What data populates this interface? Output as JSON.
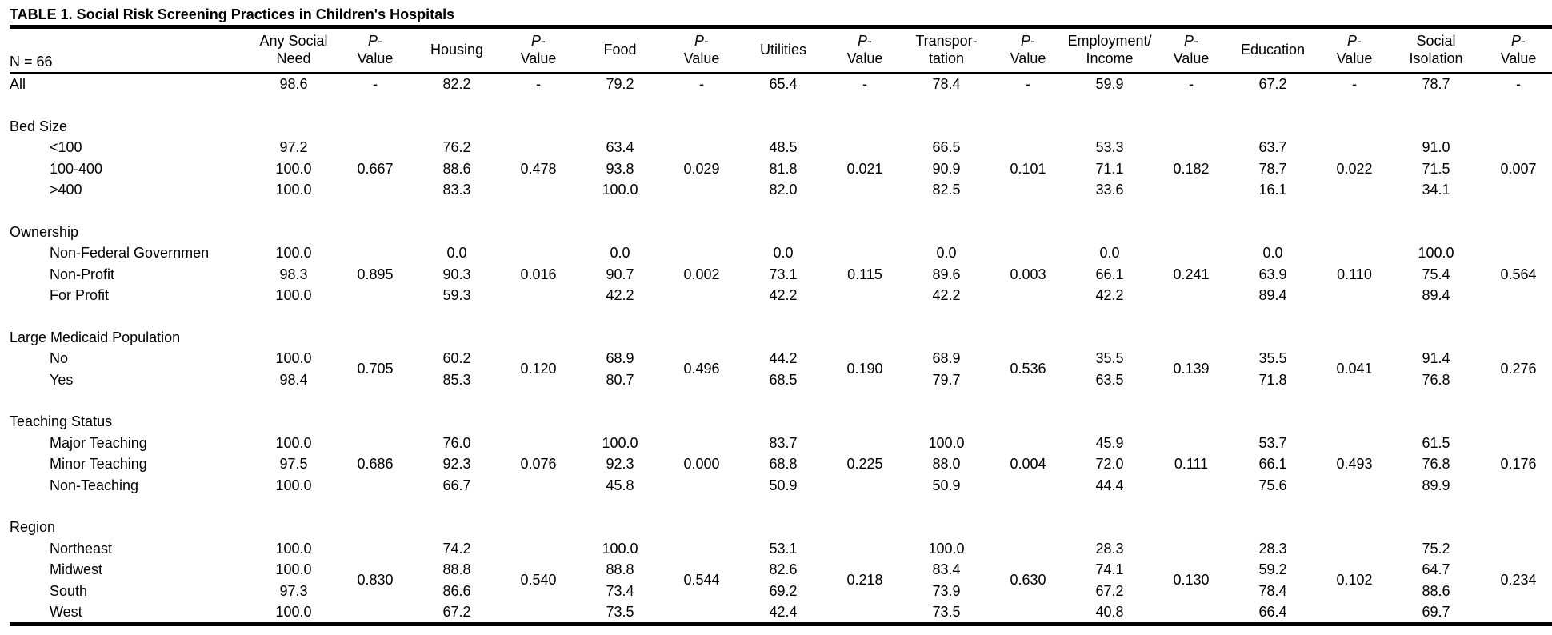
{
  "title": "TABLE 1. Social Risk Screening Practices in Children's Hospitals",
  "header": {
    "n_label": "N = 66",
    "columns": [
      "Any Social\nNeed",
      "P-\nValue",
      "Housing",
      "P-\nValue",
      "Food",
      "P-\nValue",
      "Utilities",
      "P-\nValue",
      "Transpor-\ntation",
      "P-\nValue",
      "Employment/\nIncome",
      "P-\nValue",
      "Education",
      "P-\nValue",
      "Social\nIsolation",
      "P-\nValue"
    ]
  },
  "table": {
    "all": {
      "label": "All",
      "values": [
        "98.6",
        "82.2",
        "79.2",
        "65.4",
        "78.4",
        "59.9",
        "67.2",
        "78.7"
      ],
      "p_values": [
        "-",
        "-",
        "-",
        "-",
        "-",
        "-",
        "-",
        "-"
      ]
    },
    "groups": [
      {
        "label": "Bed Size",
        "rows": [
          {
            "label": "<100",
            "values": [
              "97.2",
              "76.2",
              "63.4",
              "48.5",
              "66.5",
              "53.3",
              "63.7",
              "91.0"
            ]
          },
          {
            "label": "100-400",
            "values": [
              "100.0",
              "88.6",
              "93.8",
              "81.8",
              "90.9",
              "71.1",
              "78.7",
              "71.5"
            ]
          },
          {
            "label": ">400",
            "values": [
              "100.0",
              "83.3",
              "100.0",
              "82.0",
              "82.5",
              "33.6",
              "16.1",
              "34.1"
            ]
          }
        ],
        "p_values": [
          "0.667",
          "0.478",
          "0.029",
          "0.021",
          "0.101",
          "0.182",
          "0.022",
          "0.007"
        ]
      },
      {
        "label": "Ownership",
        "rows": [
          {
            "label": "Non-Federal Governmen",
            "values": [
              "100.0",
              "0.0",
              "0.0",
              "0.0",
              "0.0",
              "0.0",
              "0.0",
              "100.0"
            ]
          },
          {
            "label": "Non-Profit",
            "values": [
              "98.3",
              "90.3",
              "90.7",
              "73.1",
              "89.6",
              "66.1",
              "63.9",
              "75.4"
            ]
          },
          {
            "label": "For Profit",
            "values": [
              "100.0",
              "59.3",
              "42.2",
              "42.2",
              "42.2",
              "42.2",
              "89.4",
              "89.4"
            ]
          }
        ],
        "p_values": [
          "0.895",
          "0.016",
          "0.002",
          "0.115",
          "0.003",
          "0.241",
          "0.110",
          "0.564"
        ]
      },
      {
        "label": "Large Medicaid Population",
        "rows": [
          {
            "label": "No",
            "values": [
              "100.0",
              "60.2",
              "68.9",
              "44.2",
              "68.9",
              "35.5",
              "35.5",
              "91.4"
            ]
          },
          {
            "label": "Yes",
            "values": [
              "98.4",
              "85.3",
              "80.7",
              "68.5",
              "79.7",
              "63.5",
              "71.8",
              "76.8"
            ]
          }
        ],
        "p_values": [
          "0.705",
          "0.120",
          "0.496",
          "0.190",
          "0.536",
          "0.139",
          "0.041",
          "0.276"
        ]
      },
      {
        "label": "Teaching Status",
        "rows": [
          {
            "label": "Major Teaching",
            "values": [
              "100.0",
              "76.0",
              "100.0",
              "83.7",
              "100.0",
              "45.9",
              "53.7",
              "61.5"
            ]
          },
          {
            "label": "Minor Teaching",
            "values": [
              "97.5",
              "92.3",
              "92.3",
              "68.8",
              "88.0",
              "72.0",
              "66.1",
              "76.8"
            ]
          },
          {
            "label": "Non-Teaching",
            "values": [
              "100.0",
              "66.7",
              "45.8",
              "50.9",
              "50.9",
              "44.4",
              "75.6",
              "89.9"
            ]
          }
        ],
        "p_values": [
          "0.686",
          "0.076",
          "0.000",
          "0.225",
          "0.004",
          "0.111",
          "0.493",
          "0.176"
        ]
      },
      {
        "label": "Region",
        "rows": [
          {
            "label": "Northeast",
            "values": [
              "100.0",
              "74.2",
              "100.0",
              "53.1",
              "100.0",
              "28.3",
              "28.3",
              "75.2"
            ]
          },
          {
            "label": "Midwest",
            "values": [
              "100.0",
              "88.8",
              "88.8",
              "82.6",
              "83.4",
              "74.1",
              "59.2",
              "64.7"
            ]
          },
          {
            "label": "South",
            "values": [
              "97.3",
              "86.6",
              "73.4",
              "69.2",
              "73.9",
              "67.2",
              "78.4",
              "88.6"
            ]
          },
          {
            "label": "West",
            "values": [
              "100.0",
              "67.2",
              "73.5",
              "42.4",
              "73.5",
              "40.8",
              "66.4",
              "69.7"
            ]
          }
        ],
        "p_values": [
          "0.830",
          "0.540",
          "0.544",
          "0.218",
          "0.630",
          "0.130",
          "0.102",
          "0.234"
        ]
      }
    ]
  }
}
